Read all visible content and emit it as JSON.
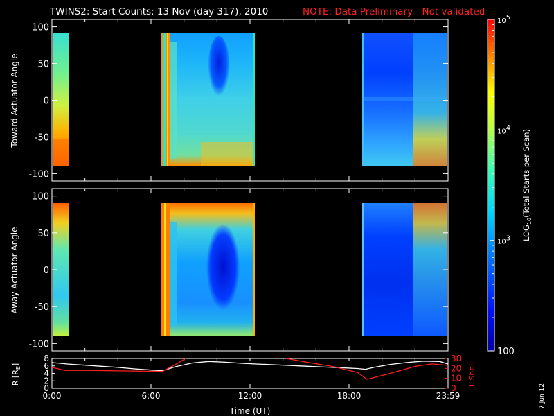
{
  "title": {
    "main": "TWINS2: Start Counts: 13 Nov (day 317), 2010",
    "note": "NOTE: Data Preliminary - Not validated",
    "note_color": "#ff2020"
  },
  "stamp": "7 Jun 12",
  "colorbar": {
    "label": "LOG10(Total Starts per Scan)",
    "label_main": "LOG",
    "label_sub": "10",
    "label_rest": "(Total Starts per Scan)",
    "range": [
      100,
      100000
    ],
    "scale": "log",
    "ticks": [
      {
        "value": 100000,
        "base": "10",
        "exp": "5"
      },
      {
        "value": 10000,
        "base": "10",
        "exp": "4"
      },
      {
        "value": 1000,
        "base": "10",
        "exp": "3"
      },
      {
        "value": 100,
        "base": "100",
        "exp": ""
      }
    ]
  },
  "chart_data": [
    {
      "type": "heatmap",
      "ylabel": "Toward Actuator Angle",
      "xlim": [
        0,
        24
      ],
      "ylim": [
        -110,
        110
      ],
      "yticks": [
        "100",
        "50",
        "0",
        "-50",
        "-100"
      ],
      "ytick_values": [
        100,
        50,
        0,
        -50,
        -100
      ],
      "data_y_range": [
        -90,
        90
      ],
      "data_intervals_hours": [
        [
          0.0,
          0.8
        ],
        [
          6.5,
          12.3
        ],
        [
          19.0,
          24.0
        ]
      ],
      "colormap": "rainbow-log"
    },
    {
      "type": "heatmap",
      "ylabel": "Away Actuator Angle",
      "xlim": [
        0,
        24
      ],
      "ylim": [
        -110,
        110
      ],
      "yticks": [
        "100",
        "50",
        "0",
        "-50",
        "-100"
      ],
      "ytick_values": [
        100,
        50,
        0,
        -50,
        -100
      ],
      "data_y_range": [
        -90,
        90
      ],
      "data_intervals_hours": [
        [
          0.0,
          0.8
        ],
        [
          6.5,
          12.3
        ],
        [
          19.0,
          24.0
        ]
      ],
      "colormap": "rainbow-log"
    },
    {
      "type": "line",
      "ylabel_left": "R [RE]",
      "ylabel_left_main": "R [R",
      "ylabel_left_sub": "E",
      "ylabel_left_end": "]",
      "ylabel_right": "L Shell",
      "ylim_left": [
        0,
        8
      ],
      "ylim_right": [
        0,
        30
      ],
      "yticks_left": [
        "0",
        "2",
        "4",
        "6",
        "8"
      ],
      "yticks_right": [
        "0",
        "10",
        "20",
        "30"
      ],
      "xlabel": "Time (UT)",
      "xticks": [
        "0:00",
        "6:00",
        "12:00",
        "18:00",
        "23:59"
      ],
      "xtick_values": [
        0,
        6,
        12,
        18,
        24
      ],
      "xlim": [
        0,
        24
      ],
      "series": [
        {
          "axis": "left",
          "color": "#ffffff",
          "x": [
            0,
            1,
            2,
            3,
            4,
            5,
            6,
            6.7,
            7.5,
            8.5,
            9.5,
            10.5,
            11.5,
            12.5,
            13.5,
            14.5,
            15.5,
            16.5,
            17.5,
            18.5,
            19.0,
            19.5,
            20.5,
            21.5,
            22.5,
            23.5,
            24
          ],
          "y": [
            6.9,
            6.5,
            6.2,
            5.9,
            5.6,
            5.2,
            4.9,
            4.7,
            5.8,
            6.8,
            7.2,
            7.0,
            6.7,
            6.5,
            6.3,
            6.1,
            5.9,
            5.7,
            5.5,
            5.3,
            5.1,
            5.6,
            6.4,
            6.9,
            7.3,
            7.2,
            6.5
          ]
        },
        {
          "axis": "right",
          "color": "#ff2020",
          "x": [
            0,
            0.8,
            2,
            4,
            6.7,
            7.6,
            8.1
          ],
          "y": [
            21,
            18,
            18,
            17.5,
            17,
            25,
            30
          ]
        },
        {
          "axis": "right",
          "color": "#ff2020",
          "x": [
            14.2,
            15.5,
            17,
            18.5,
            19.1,
            20.5,
            22,
            23,
            24
          ],
          "y": [
            30,
            26,
            22,
            16,
            9,
            15,
            22,
            24.5,
            23
          ]
        }
      ]
    }
  ]
}
